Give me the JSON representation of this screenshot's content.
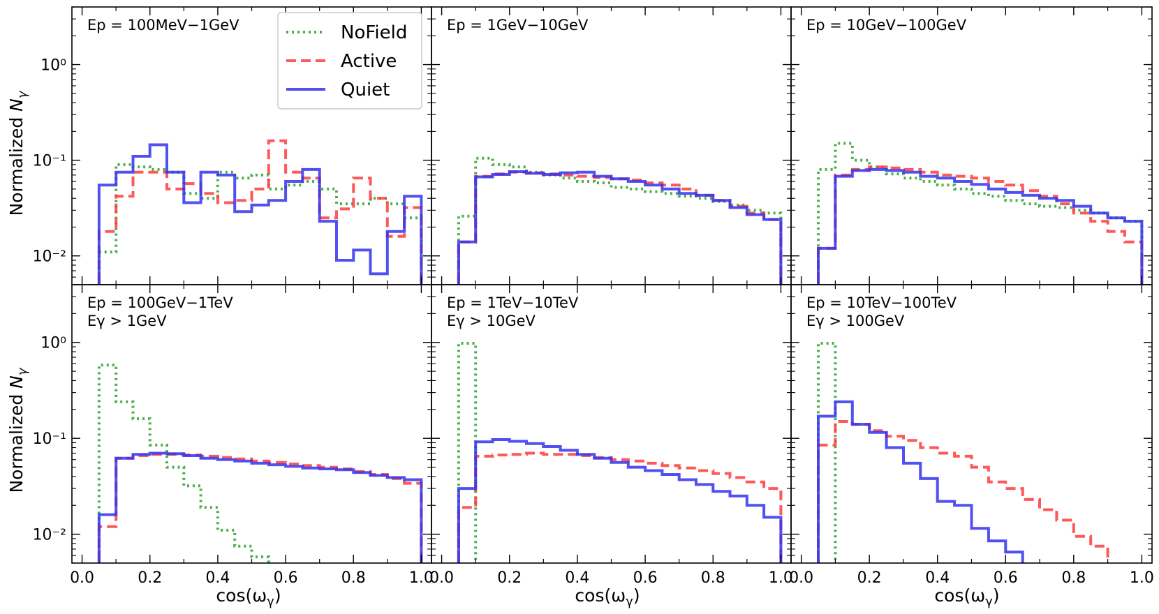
{
  "figure": {
    "xlabel": "cos(ω_γ)",
    "ylabel": "Normalized N_γ",
    "colors": {
      "NoField": "#2ca02c",
      "Active": "#ff3b3b",
      "Quiet": "#3333ee"
    },
    "legend": {
      "placement": "top-right of first panel",
      "entries": [
        "NoField",
        "Active",
        "Quiet"
      ]
    }
  },
  "chart_data": {
    "type": "line",
    "subtype": "step-histogram",
    "layout": "2x3 grid, shared axes",
    "bin_edges": [
      0.05,
      0.1,
      0.15,
      0.2,
      0.25,
      0.3,
      0.35,
      0.4,
      0.45,
      0.5,
      0.55,
      0.6,
      0.65,
      0.7,
      0.75,
      0.8,
      0.85,
      0.9,
      0.95,
      1.0
    ],
    "xlim": [
      -0.03,
      1.03
    ],
    "ylim": [
      0.005,
      4.0
    ],
    "yscale": "log",
    "xticks": [
      "0.0",
      "0.2",
      "0.4",
      "0.6",
      "0.8",
      "1.0"
    ],
    "yticks": [
      "10⁻²",
      "10⁻¹",
      "10⁰"
    ],
    "panels": [
      {
        "label1": "Ep = 100MeV−1GeV",
        "label2": "",
        "series": [
          {
            "name": "NoField",
            "values": [
              0.011,
              0.09,
              0.085,
              0.08,
              0.075,
              0.045,
              0.04,
              0.075,
              0.065,
              0.07,
              0.05,
              0.055,
              0.06,
              0.05,
              0.035,
              0.035,
              0.04,
              0.035,
              0.025
            ]
          },
          {
            "name": "Active",
            "values": [
              0.018,
              0.042,
              0.075,
              0.075,
              0.05,
              0.057,
              0.045,
              0.036,
              0.038,
              0.05,
              0.16,
              0.075,
              0.065,
              0.025,
              0.031,
              0.065,
              0.04,
              0.016,
              0.032
            ]
          },
          {
            "name": "Quiet",
            "values": [
              0.055,
              0.075,
              0.11,
              0.145,
              0.075,
              0.036,
              0.075,
              0.07,
              0.029,
              0.034,
              0.038,
              0.06,
              0.08,
              0.023,
              0.009,
              0.0115,
              0.0065,
              0.018,
              0.042
            ]
          }
        ]
      },
      {
        "label1": "Ep = 1GeV−10GeV",
        "label2": "",
        "series": [
          {
            "name": "NoField",
            "values": [
              0.026,
              0.105,
              0.09,
              0.085,
              0.075,
              0.07,
              0.065,
              0.06,
              0.058,
              0.052,
              0.05,
              0.047,
              0.045,
              0.042,
              0.04,
              0.037,
              0.034,
              0.03,
              0.028
            ]
          },
          {
            "name": "Active",
            "values": [
              0.014,
              0.068,
              0.072,
              0.075,
              0.074,
              0.072,
              0.07,
              0.068,
              0.066,
              0.064,
              0.062,
              0.058,
              0.055,
              0.05,
              0.043,
              0.038,
              0.033,
              0.028,
              0.024
            ]
          },
          {
            "name": "Quiet",
            "values": [
              0.014,
              0.067,
              0.071,
              0.076,
              0.073,
              0.071,
              0.074,
              0.075,
              0.068,
              0.064,
              0.06,
              0.055,
              0.05,
              0.045,
              0.043,
              0.038,
              0.032,
              0.027,
              0.024
            ]
          }
        ]
      },
      {
        "label1": "Ep = 10GeV−100GeV",
        "label2": "",
        "series": [
          {
            "name": "NoField",
            "values": [
              0.08,
              0.15,
              0.1,
              0.085,
              0.072,
              0.065,
              0.06,
              0.055,
              0.05,
              0.045,
              0.042,
              0.038,
              0.035,
              0.033,
              0.032,
              0.03,
              0.028,
              0.025,
              0.023
            ]
          },
          {
            "name": "Active",
            "values": [
              0.012,
              0.07,
              0.08,
              0.085,
              0.083,
              0.08,
              0.075,
              0.07,
              0.068,
              0.065,
              0.06,
              0.055,
              0.048,
              0.042,
              0.035,
              0.028,
              0.023,
              0.018,
              0.014
            ]
          },
          {
            "name": "Quiet",
            "values": [
              0.012,
              0.068,
              0.078,
              0.08,
              0.078,
              0.075,
              0.068,
              0.065,
              0.06,
              0.056,
              0.05,
              0.046,
              0.043,
              0.04,
              0.038,
              0.033,
              0.028,
              0.025,
              0.023
            ]
          }
        ]
      },
      {
        "label1": "Ep = 100GeV−1TeV",
        "label2": "Eγ > 1GeV",
        "series": [
          {
            "name": "NoField",
            "values": [
              0.58,
              0.24,
              0.16,
              0.085,
              0.05,
              0.032,
              0.019,
              0.011,
              0.0075,
              0.0058,
              0.0,
              0.0,
              0.0,
              0.0,
              0.0,
              0.0,
              0.0,
              0.0,
              0.0
            ]
          },
          {
            "name": "Active",
            "values": [
              0.012,
              0.062,
              0.066,
              0.068,
              0.068,
              0.067,
              0.065,
              0.063,
              0.061,
              0.058,
              0.056,
              0.054,
              0.052,
              0.05,
              0.048,
              0.045,
              0.042,
              0.038,
              0.034
            ]
          },
          {
            "name": "Quiet",
            "values": [
              0.016,
              0.062,
              0.068,
              0.07,
              0.069,
              0.066,
              0.062,
              0.06,
              0.058,
              0.055,
              0.053,
              0.051,
              0.049,
              0.048,
              0.047,
              0.044,
              0.041,
              0.039,
              0.037
            ]
          }
        ]
      },
      {
        "label1": "Ep = 1TeV−10TeV",
        "label2": "Eγ > 10GeV",
        "series": [
          {
            "name": "NoField",
            "values": [
              0.98,
              0.0,
              0.0,
              0.0,
              0.0,
              0.0,
              0.0,
              0.0,
              0.0,
              0.0,
              0.0,
              0.0,
              0.0,
              0.0,
              0.0,
              0.0,
              0.0,
              0.0,
              0.0
            ]
          },
          {
            "name": "Active",
            "values": [
              0.019,
              0.065,
              0.067,
              0.068,
              0.07,
              0.068,
              0.068,
              0.066,
              0.063,
              0.06,
              0.058,
              0.055,
              0.052,
              0.049,
              0.046,
              0.043,
              0.039,
              0.035,
              0.03
            ]
          },
          {
            "name": "Quiet",
            "values": [
              0.03,
              0.092,
              0.097,
              0.093,
              0.088,
              0.082,
              0.075,
              0.068,
              0.062,
              0.056,
              0.05,
              0.046,
              0.042,
              0.037,
              0.033,
              0.028,
              0.025,
              0.02,
              0.015
            ]
          }
        ]
      },
      {
        "label1": "Ep = 10TeV−100TeV",
        "label2": "Eγ > 100GeV",
        "series": [
          {
            "name": "NoField",
            "values": [
              0.98,
              0.0,
              0.0,
              0.0,
              0.0,
              0.0,
              0.0,
              0.0,
              0.0,
              0.0,
              0.0,
              0.0,
              0.0,
              0.0,
              0.0,
              0.0,
              0.0,
              0.0,
              0.0
            ]
          },
          {
            "name": "Active",
            "values": [
              0.085,
              0.15,
              0.14,
              0.12,
              0.105,
              0.095,
              0.08,
              0.07,
              0.065,
              0.05,
              0.035,
              0.03,
              0.023,
              0.018,
              0.014,
              0.0095,
              0.0075,
              0.0,
              0.0
            ]
          },
          {
            "name": "Quiet",
            "values": [
              0.17,
              0.24,
              0.14,
              0.115,
              0.08,
              0.055,
              0.038,
              0.022,
              0.02,
              0.0115,
              0.0085,
              0.0065,
              0.0,
              0.0,
              0.0,
              0.0,
              0.0,
              0.0,
              0.0
            ]
          }
        ]
      }
    ]
  }
}
